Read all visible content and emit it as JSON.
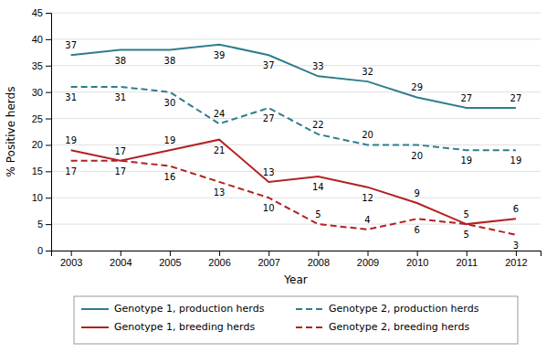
{
  "chart_data": {
    "type": "line",
    "xlabel": "Year",
    "ylabel": "% Positive herds",
    "x": [
      2003,
      2004,
      2005,
      2006,
      2007,
      2008,
      2009,
      2010,
      2011,
      2012
    ],
    "xlim": [
      2002.6,
      2012.5
    ],
    "xticks": [
      2003,
      2004,
      2005,
      2006,
      2007,
      2008,
      2009,
      2010,
      2011,
      2012
    ],
    "ylim": [
      0,
      45
    ],
    "yticks": [
      0,
      5,
      10,
      15,
      20,
      25,
      30,
      35,
      40,
      45
    ],
    "grid": true,
    "data_labels": true,
    "legend": "bottom",
    "series": [
      {
        "name": "Genotype 1, production herds",
        "color": "#2E7D8C",
        "line_style": "solid",
        "values": [
          37,
          38,
          38,
          39,
          37,
          33,
          32,
          29,
          27,
          27
        ]
      },
      {
        "name": "Genotype 2, production herds",
        "color": "#2E7D8C",
        "line_style": "dashed",
        "values": [
          31,
          31,
          30,
          24,
          27,
          22,
          20,
          20,
          19,
          19
        ]
      },
      {
        "name": "Genotype 1, breeding herds",
        "color": "#B22222",
        "line_style": "solid",
        "values": [
          19,
          17,
          19,
          21,
          13,
          14,
          12,
          9,
          5,
          6
        ]
      },
      {
        "name": "Genotype 2, breeding herds",
        "color": "#B22222",
        "line_style": "dashed",
        "values": [
          17,
          17,
          16,
          13,
          10,
          5,
          4,
          6,
          5,
          3
        ]
      }
    ]
  }
}
